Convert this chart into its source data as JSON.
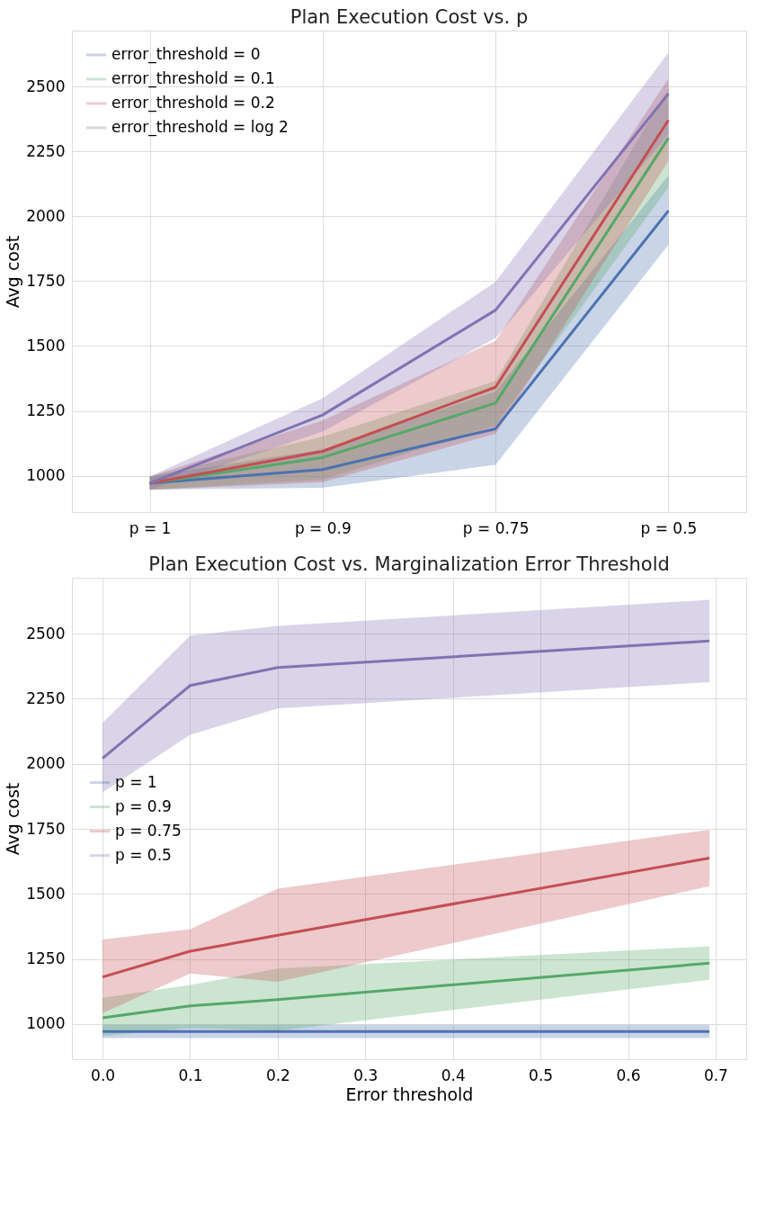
{
  "chart_data": [
    {
      "type": "line",
      "title": "Plan Execution Cost vs. p",
      "ylabel": "Avg cost",
      "categories": [
        "p = 1",
        "p = 0.9",
        "p = 0.75",
        "p = 0.5"
      ],
      "ylim": [
        860,
        2715
      ],
      "yticks": [
        1000,
        1250,
        1500,
        1750,
        2000,
        2250,
        2500
      ],
      "grid": true,
      "legend": "top left",
      "series": [
        {
          "name": "error_threshold = 0",
          "color": "#4c72b0",
          "values": [
            971,
            1024,
            1181,
            2021
          ],
          "lower": [
            946,
            954,
            1042,
            1890
          ],
          "upper": [
            997,
            1101,
            1325,
            2157
          ]
        },
        {
          "name": "error_threshold = 0.1",
          "color": "#55a868",
          "values": [
            971,
            1070,
            1280,
            2301
          ],
          "lower": [
            946,
            985,
            1194,
            2112
          ],
          "upper": [
            997,
            1150,
            1365,
            2493
          ]
        },
        {
          "name": "error_threshold = 0.2",
          "color": "#c44e52",
          "values": [
            971,
            1094,
            1341,
            2370
          ],
          "lower": [
            946,
            975,
            1162,
            2213
          ],
          "upper": [
            997,
            1213,
            1520,
            2530
          ]
        },
        {
          "name": "error_threshold = log 2",
          "color": "#8172b2",
          "values": [
            971,
            1234,
            1638,
            2472
          ],
          "lower": [
            946,
            1170,
            1530,
            2314
          ],
          "upper": [
            997,
            1299,
            1747,
            2630
          ]
        }
      ]
    },
    {
      "type": "line",
      "title": "Plan Execution Cost vs. Marginalization Error Threshold",
      "xlabel": "Error threshold",
      "ylabel": "Avg cost",
      "x": [
        0,
        0.1,
        0.2,
        0.693
      ],
      "xlim": [
        -0.035,
        0.735
      ],
      "xticks": [
        {
          "value": 0,
          "label": "0.0"
        },
        {
          "value": 0.1,
          "label": "0.1"
        },
        {
          "value": 0.2,
          "label": "0.2"
        },
        {
          "value": 0.3,
          "label": "0.3"
        },
        {
          "value": 0.4,
          "label": "0.4"
        },
        {
          "value": 0.5,
          "label": "0.5"
        },
        {
          "value": 0.6,
          "label": "0.6"
        },
        {
          "value": 0.7,
          "label": "0.7"
        }
      ],
      "ylim": [
        865,
        2715
      ],
      "yticks": [
        1000,
        1250,
        1500,
        1750,
        2000,
        2250,
        2500
      ],
      "grid": true,
      "legend": "left",
      "series": [
        {
          "name": "p = 1",
          "color": "#4c72b0",
          "values": [
            971,
            971,
            971,
            971
          ],
          "lower": [
            946,
            946,
            946,
            946
          ],
          "upper": [
            997,
            997,
            997,
            997
          ]
        },
        {
          "name": "p = 0.9",
          "color": "#55a868",
          "values": [
            1024,
            1070,
            1094,
            1234
          ],
          "lower": [
            954,
            985,
            975,
            1170
          ],
          "upper": [
            1101,
            1150,
            1213,
            1299
          ]
        },
        {
          "name": "p = 0.75",
          "color": "#c44e52",
          "values": [
            1181,
            1280,
            1341,
            1638
          ],
          "lower": [
            1042,
            1194,
            1162,
            1530
          ],
          "upper": [
            1325,
            1365,
            1520,
            1747
          ]
        },
        {
          "name": "p = 0.5",
          "color": "#8172b2",
          "values": [
            2021,
            2301,
            2370,
            2472
          ],
          "lower": [
            1890,
            2112,
            2213,
            2314
          ],
          "upper": [
            2157,
            2493,
            2530,
            2630
          ]
        }
      ]
    }
  ]
}
